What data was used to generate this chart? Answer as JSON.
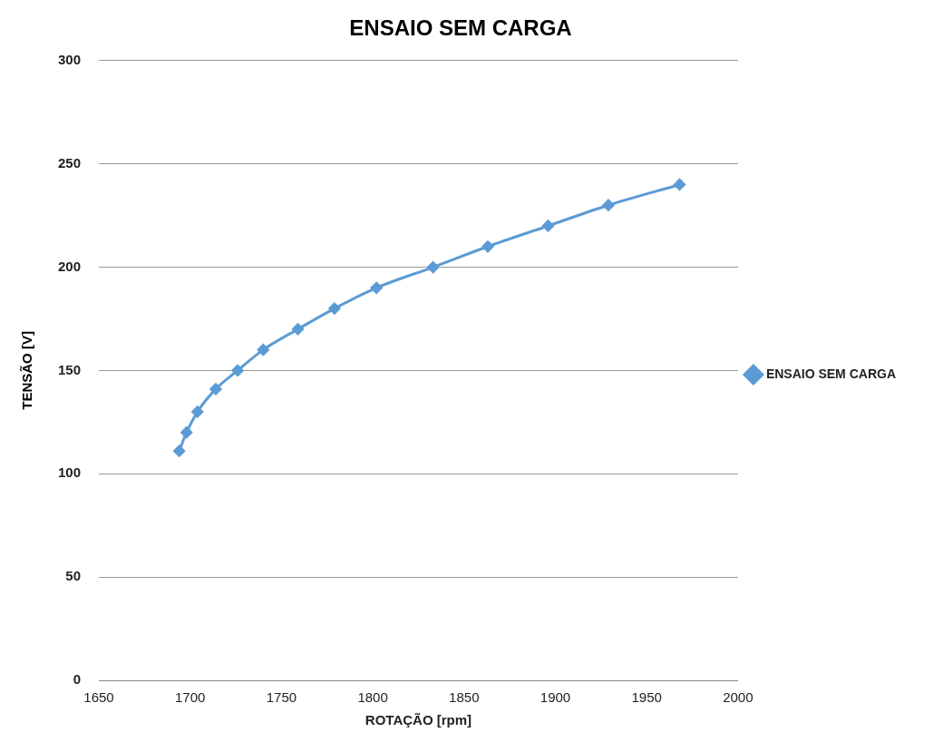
{
  "chart_data": {
    "type": "line",
    "title": "ENSAIO SEM CARGA",
    "xlabel": "ROTAÇÃO [rpm]",
    "ylabel": "TENSÃO [V]",
    "x": [
      1694,
      1698,
      1704,
      1714,
      1726,
      1740,
      1759,
      1779,
      1802,
      1833,
      1863,
      1896,
      1929,
      1968
    ],
    "series": [
      {
        "name": "ENSAIO SEM CARGA",
        "color": "#5b9bd5",
        "values": [
          111,
          120,
          130,
          141,
          150,
          160,
          170,
          180,
          190,
          200,
          210,
          220,
          230,
          240
        ]
      }
    ],
    "xlim": [
      1650,
      2000
    ],
    "xticks": [
      1650,
      1700,
      1750,
      1800,
      1850,
      1900,
      1950,
      2000
    ],
    "ylim": [
      0,
      300
    ],
    "yticks": [
      0,
      50,
      100,
      150,
      200,
      250,
      300
    ],
    "grid": "y",
    "legend": "right",
    "marker": "diamond",
    "line_style": "solid"
  }
}
